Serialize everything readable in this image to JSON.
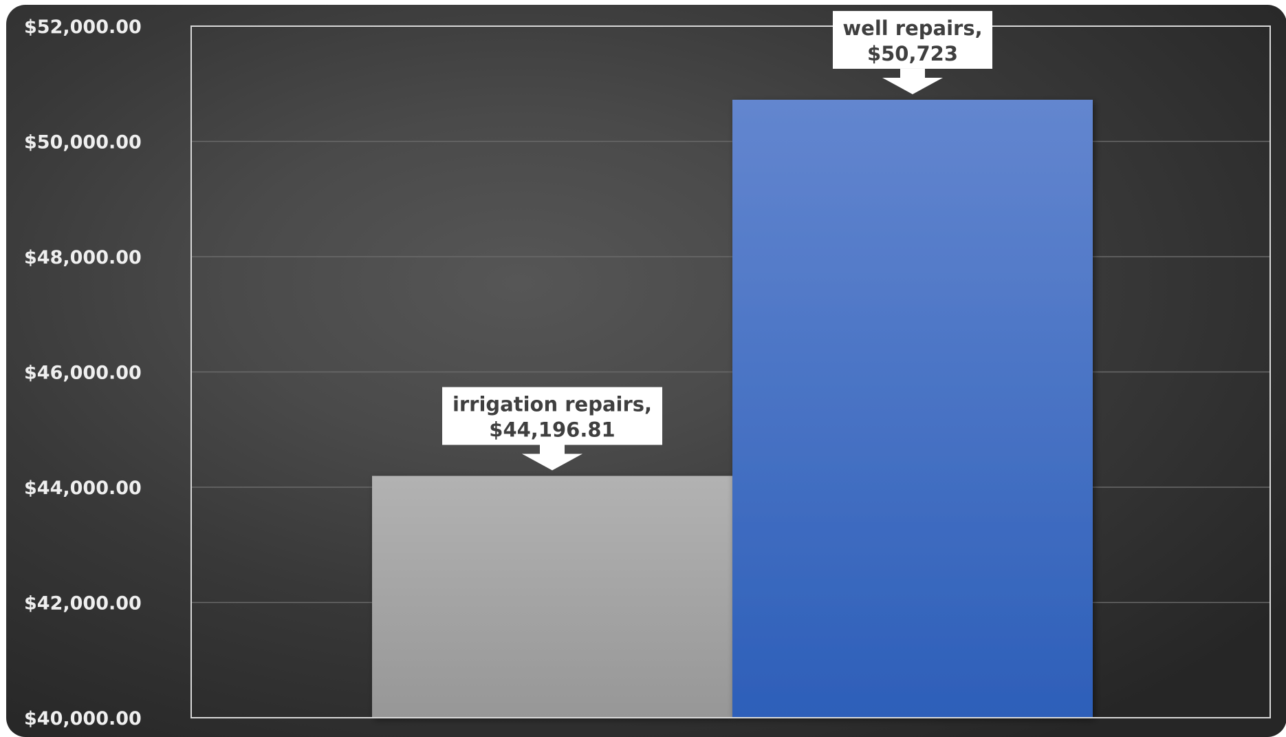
{
  "chart_data": {
    "type": "bar",
    "categories": [
      "irrigation repairs",
      "well repairs"
    ],
    "values": [
      44196.81,
      50723
    ],
    "data_labels": [
      {
        "line1": "irrigation repairs,",
        "line2": "$44,196.81"
      },
      {
        "line1": "well repairs,",
        "line2": "$50,723"
      }
    ],
    "ylim": [
      40000,
      52000
    ],
    "ytick_step": 2000,
    "ytick_labels": [
      "$40,000.00",
      "$42,000.00",
      "$44,000.00",
      "$46,000.00",
      "$48,000.00",
      "$50,000.00",
      "$52,000.00"
    ],
    "grid": true,
    "legend": "none",
    "colors": {
      "bar_1_top": "#b2b2b2",
      "bar_1_bottom": "#979797",
      "bar_2_top": "#6386cf",
      "bar_2_bottom": "#2d5fb9",
      "callout_fill": "#ffffff",
      "axis_text": "#efefef",
      "plot_border": "#d9d9d9"
    }
  }
}
